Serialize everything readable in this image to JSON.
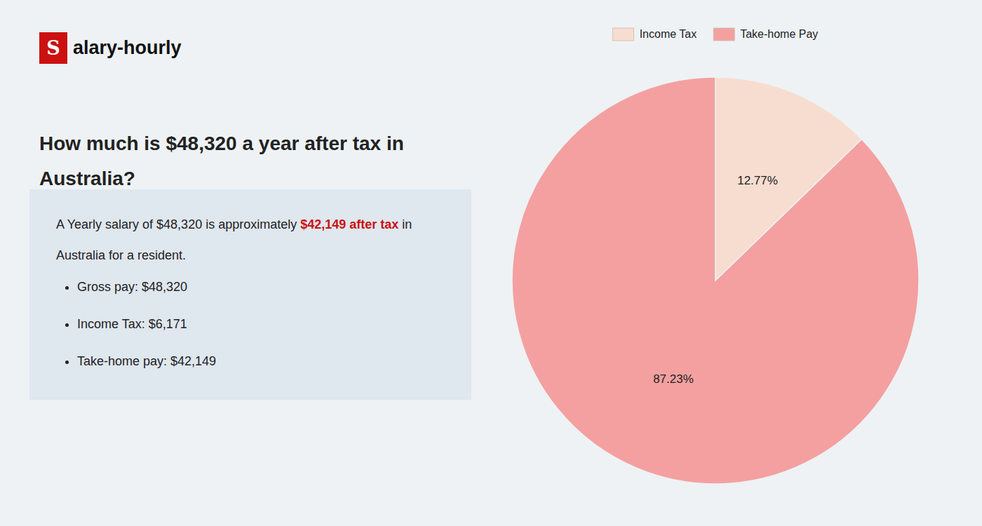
{
  "chart_data": {
    "type": "pie",
    "title": "How much is $48,320 a year after tax in\nAustralia?",
    "categories": [
      "Income Tax",
      "Take-home Pay"
    ],
    "values": [
      12.77,
      87.23
    ],
    "value_labels": [
      "12.77%",
      "87.23%"
    ],
    "colors": [
      "#f7ddd0",
      "#f4a0a0"
    ],
    "data_labels": true,
    "legend": "top",
    "annotations": [
      "S",
      "alary-hourly",
      "A Yearly salary of $48,320 is approximately ",
      "$42,149 after tax",
      " in",
      "Australia for a resident.",
      "Gross pay: $48,320",
      "Income Tax: $6,171",
      "Take-home pay: $42,149"
    ]
  }
}
